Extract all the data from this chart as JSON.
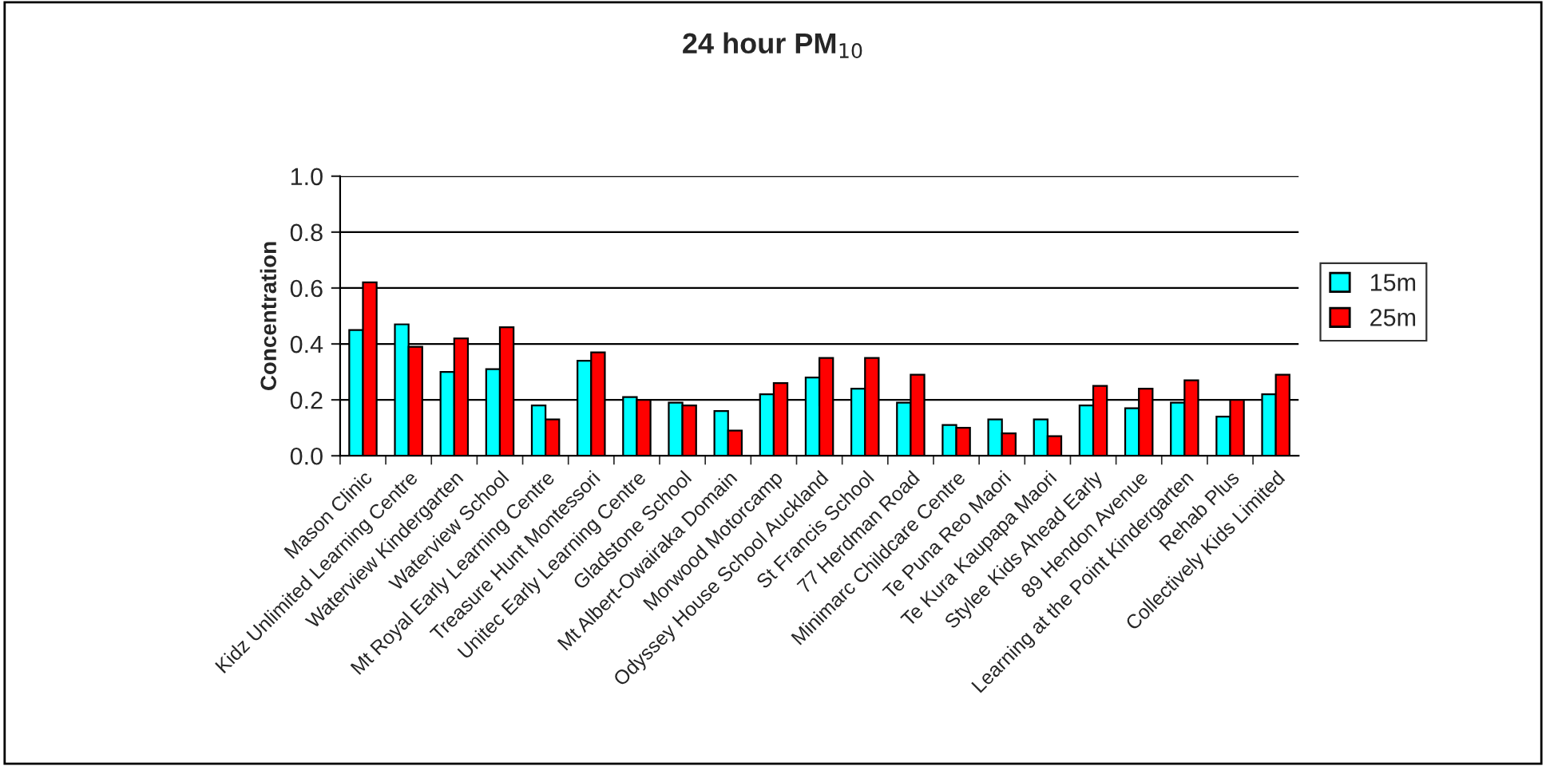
{
  "chart_data": {
    "type": "bar",
    "title": "24 hour PM$_{10}$",
    "ylabel": "Concentration",
    "categories": [
      "Mason Clinic",
      "Kidz Unlimited Learning Centre",
      "Waterview Kindergarten",
      "Waterview School",
      "Mt Royal Early Learning Centre",
      "Treasure Hunt Montessori",
      "Unitec Early Learning Centre",
      "Gladstone School",
      "Mt Albert-Owairaka Domain",
      "Morwood Motorcamp",
      "Odyssey House School Auckland",
      "St Francis School",
      "77 Herdman Road",
      "Minimarc Childcare Centre",
      "Te Puna Reo Maori",
      "Te Kura Kaupapa Maori",
      "Stylee Kids Ahead Early",
      "89 Hendon Avenue",
      "Learning at the Point Kindergarten",
      "Rehab Plus",
      "Collectively Kids Limited"
    ],
    "series": [
      {
        "name": "15m",
        "color": "#00ffff",
        "values": [
          0.45,
          0.47,
          0.3,
          0.31,
          0.18,
          0.34,
          0.21,
          0.19,
          0.16,
          0.22,
          0.28,
          0.24,
          0.19,
          0.11,
          0.13,
          0.13,
          0.18,
          0.17,
          0.19,
          0.14,
          0.22
        ]
      },
      {
        "name": "25m",
        "color": "#ff0000",
        "values": [
          0.62,
          0.39,
          0.42,
          0.46,
          0.13,
          0.37,
          0.2,
          0.18,
          0.09,
          0.26,
          0.35,
          0.35,
          0.29,
          0.1,
          0.08,
          0.07,
          0.25,
          0.24,
          0.27,
          0.2,
          0.29
        ]
      }
    ],
    "ylim": [
      0,
      1.0
    ],
    "yticks": [
      {
        "value": 0,
        "label": "0.0"
      },
      {
        "value": 0.2,
        "label": "0.2"
      },
      {
        "value": 0.4,
        "label": "0.4"
      },
      {
        "value": 0.6,
        "label": "0.6"
      },
      {
        "value": 0.8,
        "label": "0.8"
      },
      {
        "value": 1.0,
        "label": "1.0"
      }
    ],
    "grid": "y",
    "legend": "right"
  }
}
